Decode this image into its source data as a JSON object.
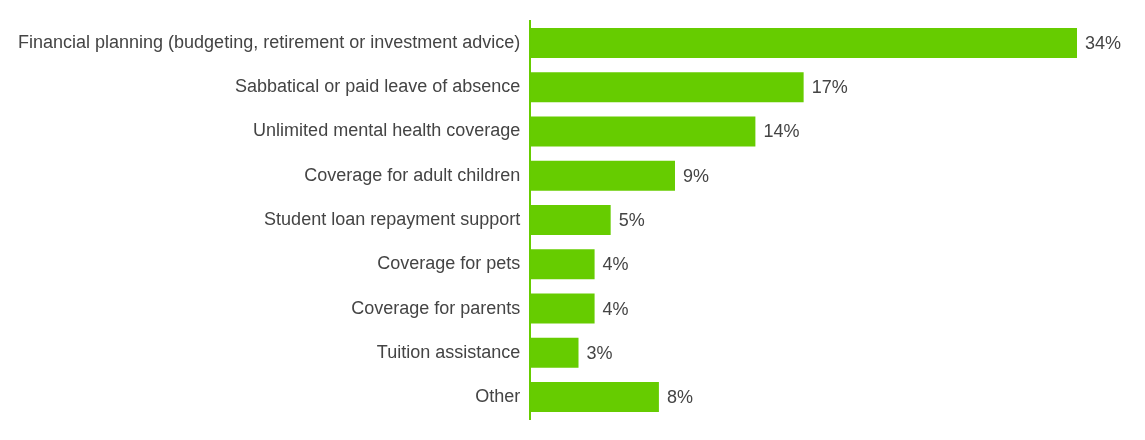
{
  "chart_data": {
    "type": "bar",
    "orientation": "horizontal",
    "categories": [
      "Financial planning (budgeting, retirement or investment advice)",
      "Sabbatical or paid leave of absence",
      "Unlimited mental health coverage",
      "Coverage for adult children",
      "Student loan repayment support",
      "Coverage for pets",
      "Coverage for parents",
      "Tuition assistance",
      "Other"
    ],
    "values": [
      34,
      17,
      14,
      9,
      5,
      4,
      4,
      3,
      8
    ],
    "value_labels": [
      "34%",
      "17%",
      "14%",
      "9%",
      "5%",
      "4%",
      "4%",
      "3%",
      "8%"
    ],
    "color": "#66cc00",
    "tick_labels": "y"
  }
}
